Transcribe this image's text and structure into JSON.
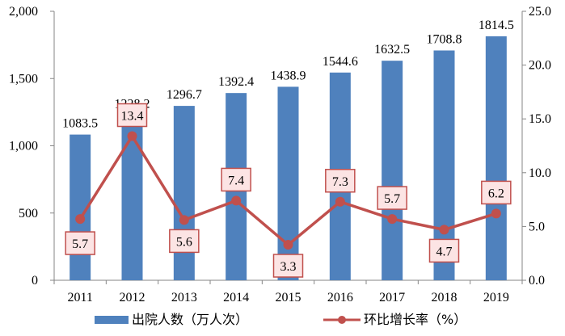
{
  "chart_data": {
    "type": "bar",
    "categories": [
      "2011",
      "2012",
      "2013",
      "2014",
      "2015",
      "2016",
      "2017",
      "2018",
      "2019"
    ],
    "series": [
      {
        "name": "出院人数（万人次）",
        "type": "bar",
        "axis": "left",
        "color": "#4F81BD",
        "values": [
          1083.5,
          1228.2,
          1296.7,
          1392.4,
          1438.9,
          1544.6,
          1632.5,
          1708.8,
          1814.5
        ],
        "labels": [
          "1083.5",
          "1228.2",
          "1296.7",
          "1392.4",
          "1438.9",
          "1544.6",
          "1632.5",
          "1708.8",
          "1814.5"
        ]
      },
      {
        "name": "环比增长率（%）",
        "type": "line",
        "axis": "right",
        "color": "#C0504D",
        "values": [
          5.7,
          13.4,
          5.6,
          7.4,
          3.3,
          7.3,
          5.7,
          4.7,
          6.2
        ],
        "labels": [
          "5.7",
          "13.4",
          "5.6",
          "7.4",
          "3.3",
          "7.3",
          "5.7",
          "4.7",
          "6.2"
        ]
      }
    ],
    "y_left": {
      "min": 0,
      "max": 2000,
      "ticks": [
        0,
        500,
        1000,
        1500,
        2000
      ],
      "tick_labels": [
        "0",
        "500",
        "1,000",
        "1,500",
        "2,000"
      ]
    },
    "y_right": {
      "min": 0,
      "max": 25,
      "ticks": [
        0,
        5,
        10,
        15,
        20,
        25
      ],
      "tick_labels": [
        "0.0",
        "5.0",
        "10.0",
        "15.0",
        "20.0",
        "25.0"
      ]
    },
    "grid": false,
    "legend_position": "bottom",
    "label_box_fill": "#FCE4E4",
    "label_box_stroke": "#C0504D"
  }
}
